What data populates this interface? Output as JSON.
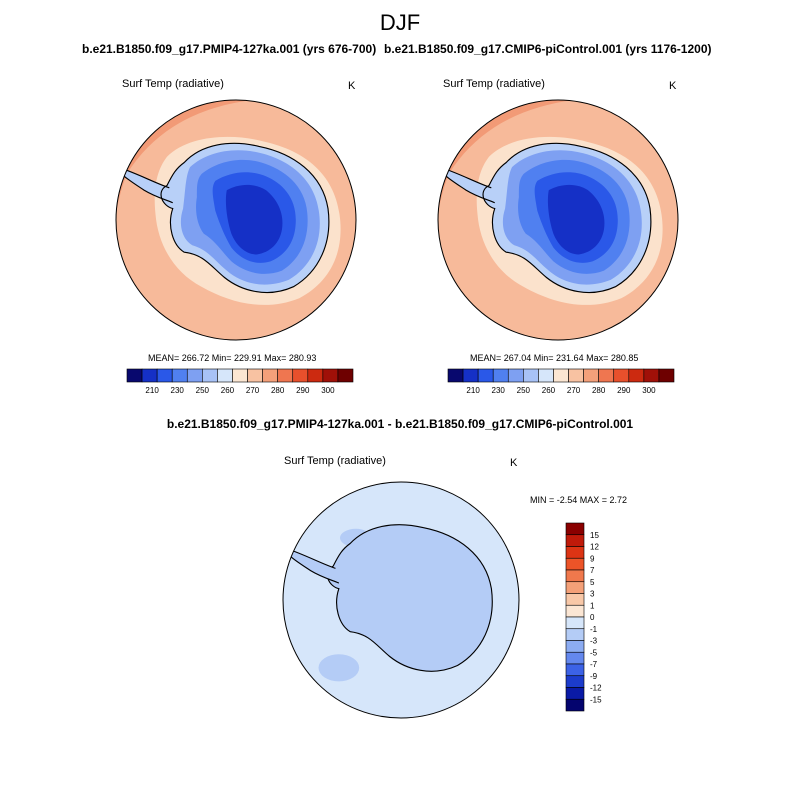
{
  "season": "DJF",
  "panels": [
    {
      "title": "b.e21.B1850.f09_g17.PMIP4-127ka.001 (yrs 676-700)",
      "variable": "Surf Temp (radiative)",
      "units": "K",
      "stats": "MEAN= 266.72  Min= 229.91  Max= 280.93"
    },
    {
      "title": "b.e21.B1850.f09_g17.CMIP6-piControl.001 (yrs 1176-1200)",
      "variable": "Surf Temp (radiative)",
      "units": "K",
      "stats": "MEAN= 267.04  Min= 231.64  Max= 280.85"
    }
  ],
  "difference": {
    "title": "b.e21.B1850.f09_g17.PMIP4-127ka.001 - b.e21.B1850.f09_g17.CMIP6-piControl.001",
    "variable": "Surf Temp (radiative)",
    "units": "K",
    "stats": "MIN =  -2.54 MAX =   2.72"
  },
  "colorbar_top": {
    "labels": [
      "210",
      "230",
      "250",
      "260",
      "270",
      "280",
      "290",
      "300"
    ],
    "colors": [
      "#08086e",
      "#1530c6",
      "#2a58e8",
      "#5080f0",
      "#7ea0f2",
      "#a8c2f6",
      "#d6e6fa",
      "#fbe6d2",
      "#f8c2a2",
      "#f4a07a",
      "#ef7650",
      "#e8502c",
      "#cc2a10",
      "#a01008",
      "#6e0000"
    ]
  },
  "colorbar_diff": {
    "labels": [
      "15",
      "12",
      "9",
      "7",
      "5",
      "3",
      "1",
      "0",
      "-1",
      "-3",
      "-5",
      "-7",
      "-9",
      "-12",
      "-15"
    ],
    "colors": [
      "#8a0000",
      "#c01a0a",
      "#dc3414",
      "#ec5428",
      "#f0784c",
      "#f4a078",
      "#f8c8a8",
      "#fbe6d4",
      "#d6e6fa",
      "#b4ccf6",
      "#8cacf2",
      "#6488ee",
      "#3c62e6",
      "#1c3ccc",
      "#0a1aa6",
      "#04046e"
    ]
  }
}
